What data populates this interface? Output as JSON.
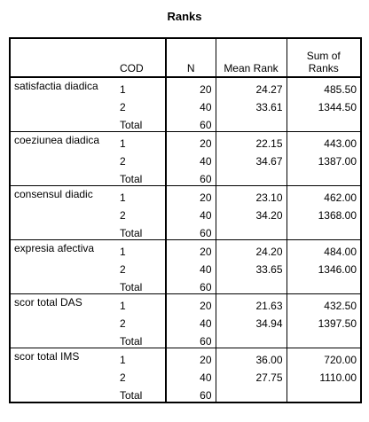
{
  "title": "Ranks",
  "header": [
    "COD",
    "N",
    "Mean Rank",
    "Sum of Ranks"
  ],
  "groups": [
    {
      "label": "satisfactia diadica",
      "rows": [
        [
          "1",
          "20",
          "24.27",
          "485.50"
        ],
        [
          "2",
          "40",
          "33.61",
          "1344.50"
        ],
        [
          "Total",
          "60"
        ]
      ]
    },
    {
      "label": "coeziunea diadica",
      "rows": [
        [
          "1",
          "20",
          "22.15",
          "443.00"
        ],
        [
          "2",
          "40",
          "34.67",
          "1387.00"
        ],
        [
          "Total",
          "60"
        ]
      ]
    },
    {
      "label": "consensul diadic",
      "rows": [
        [
          "1",
          "20",
          "23.10",
          "462.00"
        ],
        [
          "2",
          "40",
          "34.20",
          "1368.00"
        ],
        [
          "Total",
          "60"
        ]
      ]
    },
    {
      "label": "expresia afectiva",
      "rows": [
        [
          "1",
          "20",
          "24.20",
          "484.00"
        ],
        [
          "2",
          "40",
          "33.65",
          "1346.00"
        ],
        [
          "Total",
          "60"
        ]
      ]
    },
    {
      "label": "scor total DAS",
      "rows": [
        [
          "1",
          "20",
          "21.63",
          "432.50"
        ],
        [
          "2",
          "40",
          "34.94",
          "1397.50"
        ],
        [
          "Total",
          "60"
        ]
      ]
    },
    {
      "label": "scor total IMS",
      "rows": [
        [
          "1",
          "20",
          "36.00",
          "720.00"
        ],
        [
          "2",
          "40",
          "27.75",
          "1110.00"
        ],
        [
          "Total",
          "60"
        ]
      ]
    }
  ]
}
